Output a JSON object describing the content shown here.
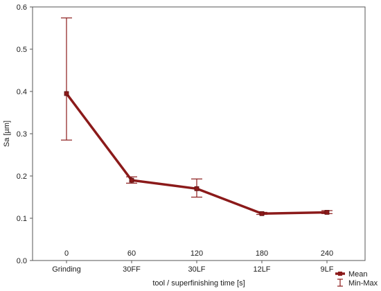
{
  "chart_data": {
    "type": "line",
    "title": "",
    "xlabel": "tool / superfinishing time [s]",
    "ylabel": "Sa [µm]",
    "categories": [
      "Grinding",
      "30FF",
      "30LF",
      "12LF",
      "9LF"
    ],
    "annotations": [
      "0",
      "60",
      "120",
      "180",
      "240"
    ],
    "ylim": [
      0,
      0.6
    ],
    "yticks": [
      "0.0",
      "0.1",
      "0.2",
      "0.3",
      "0.4",
      "0.5",
      "0.6"
    ],
    "grid": false,
    "series": [
      {
        "name": "Mean",
        "values": [
          0.395,
          0.19,
          0.17,
          0.111,
          0.114
        ],
        "min": [
          0.285,
          0.183,
          0.15,
          0.109,
          0.111
        ],
        "max": [
          0.574,
          0.198,
          0.193,
          0.114,
          0.118
        ]
      }
    ],
    "legend": {
      "position": "bottom-right",
      "entries": [
        "Mean",
        "Min-Max"
      ]
    },
    "colors": {
      "series": "#8b1a1a",
      "axis": "#555555"
    }
  }
}
